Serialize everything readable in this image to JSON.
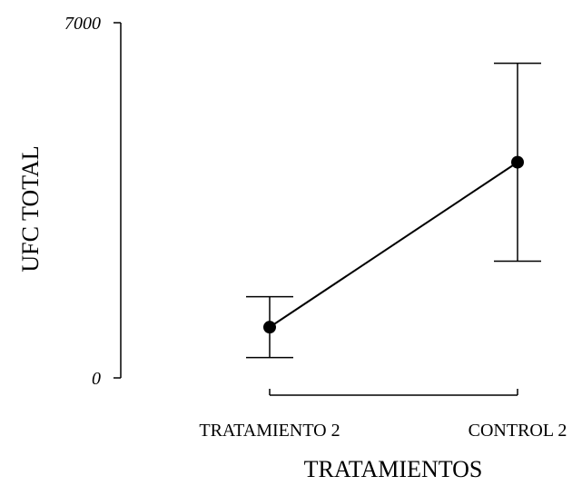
{
  "chart_data": {
    "type": "line",
    "categories": [
      "TRATAMIENTO 2",
      "CONTROL 2"
    ],
    "series": [
      {
        "values": [
          1000,
          4250
        ],
        "error_low": [
          400,
          2300
        ],
        "error_high": [
          1600,
          6200
        ]
      }
    ],
    "xlabel": "TRATAMIENTOS",
    "ylabel": "UFC TOTAL",
    "ylim": [
      0,
      7000
    ],
    "yticks": [
      "0",
      "7000"
    ],
    "grid": false,
    "legend": "none",
    "colors": {
      "line": "#000000",
      "marker": "#000000"
    }
  }
}
